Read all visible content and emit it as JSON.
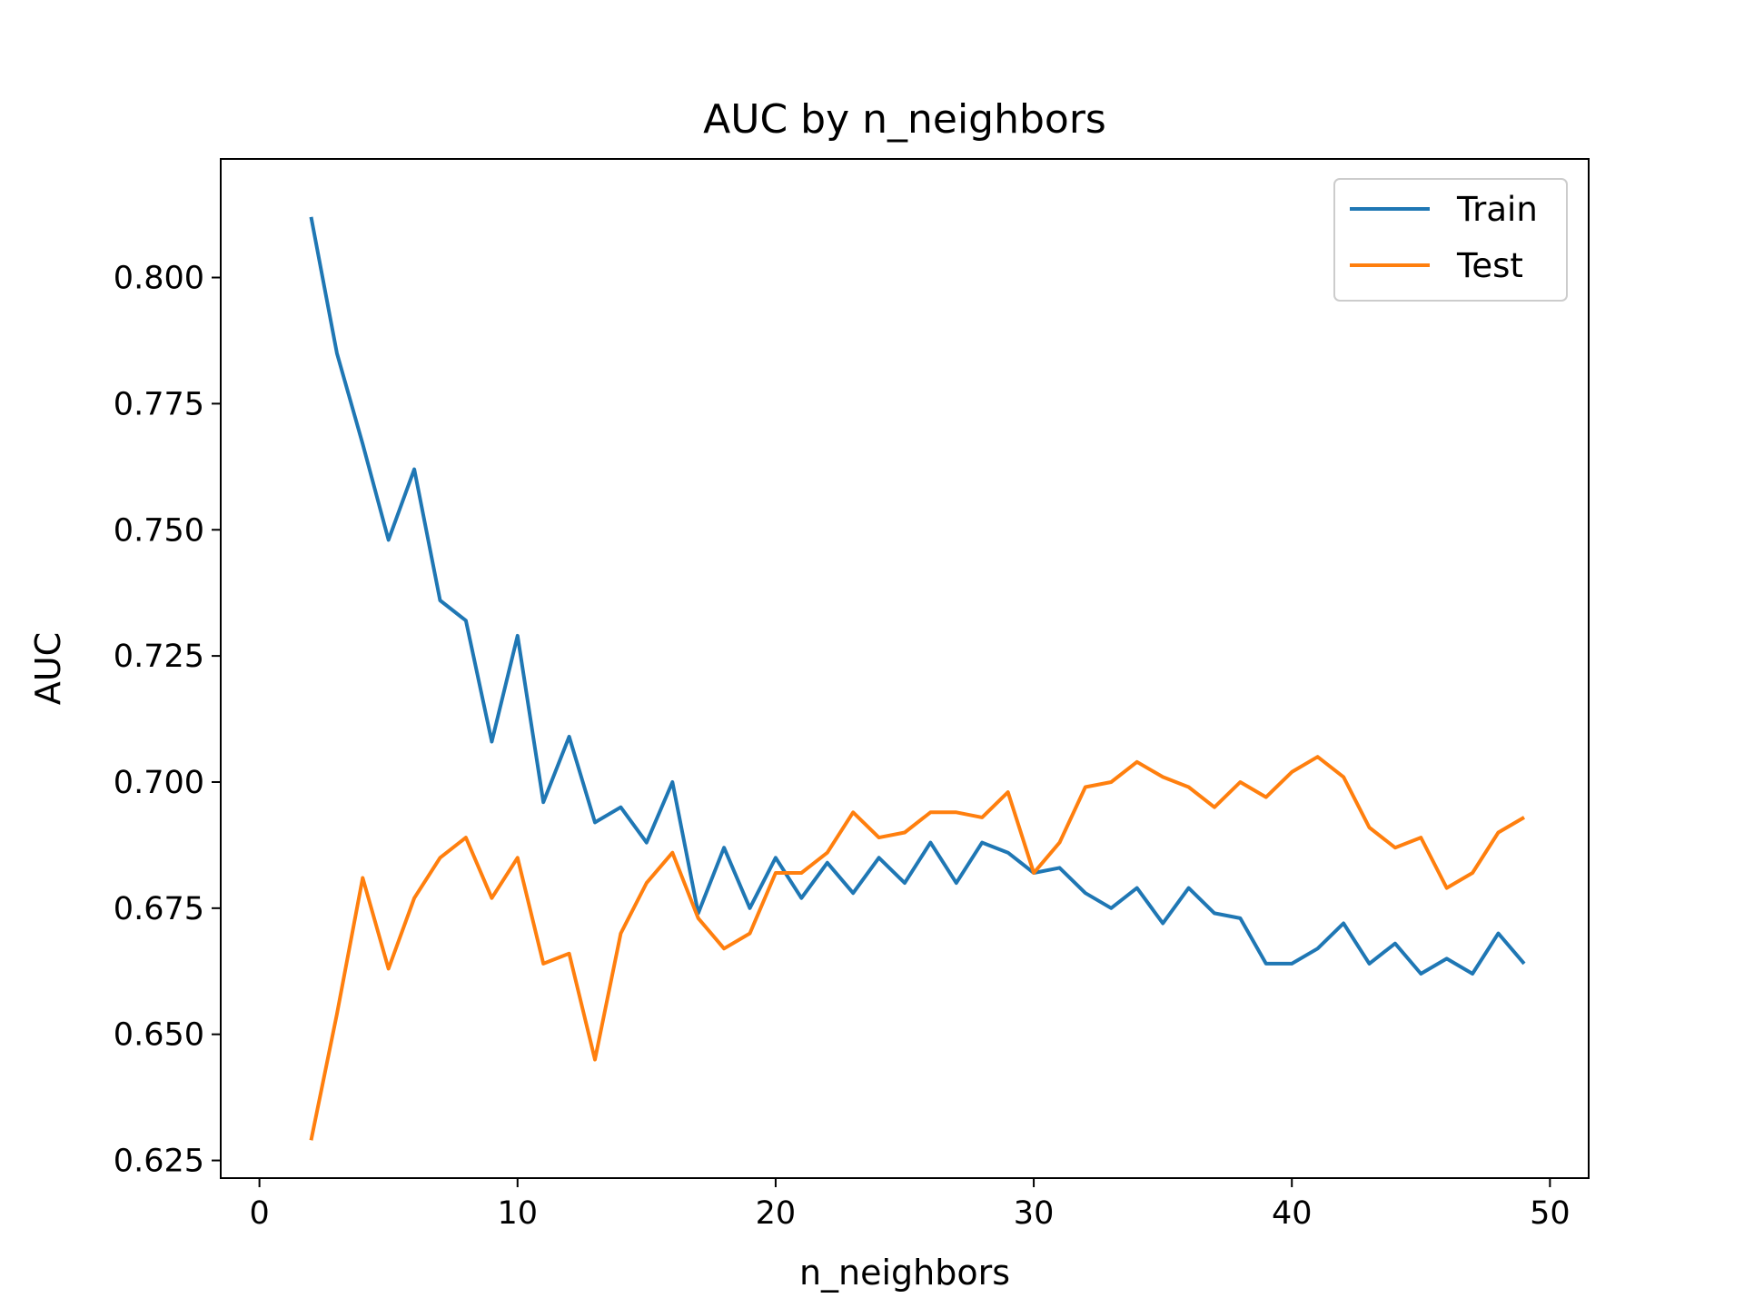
{
  "chart_data": {
    "type": "line",
    "title": "AUC by n_neighbors",
    "xlabel": "n_neighbors",
    "ylabel": "AUC",
    "xlim": [
      -1.5,
      51.5
    ],
    "ylim": [
      0.6215,
      0.8235
    ],
    "xticks": [
      0,
      10,
      20,
      30,
      40,
      50
    ],
    "yticks": [
      0.625,
      0.65,
      0.675,
      0.7,
      0.725,
      0.75,
      0.775,
      0.8
    ],
    "xtick_labels": [
      "0",
      "10",
      "20",
      "30",
      "40",
      "50"
    ],
    "ytick_labels": [
      "0.625",
      "0.650",
      "0.675",
      "0.700",
      "0.725",
      "0.750",
      "0.775",
      "0.800"
    ],
    "grid": false,
    "legend_position": "top-right",
    "x": [
      2,
      3,
      4,
      5,
      6,
      7,
      8,
      9,
      10,
      11,
      12,
      13,
      14,
      15,
      16,
      17,
      18,
      19,
      20,
      21,
      22,
      23,
      24,
      25,
      26,
      27,
      28,
      29,
      30,
      31,
      32,
      33,
      34,
      35,
      36,
      37,
      38,
      39,
      40,
      41,
      42,
      43,
      44,
      45,
      46,
      47,
      48,
      49
    ],
    "series": [
      {
        "name": "Train",
        "color": "#1f77b4",
        "values": [
          0.812,
          0.785,
          0.767,
          0.748,
          0.762,
          0.736,
          0.732,
          0.708,
          0.729,
          0.696,
          0.709,
          0.692,
          0.695,
          0.688,
          0.7,
          0.674,
          0.687,
          0.675,
          0.685,
          0.677,
          0.684,
          0.678,
          0.685,
          0.68,
          0.688,
          0.68,
          0.688,
          0.686,
          0.682,
          0.683,
          0.678,
          0.675,
          0.679,
          0.672,
          0.679,
          0.674,
          0.673,
          0.664,
          0.664,
          0.667,
          0.672,
          0.664,
          0.668,
          0.662,
          0.665,
          0.662,
          0.67,
          0.664
        ]
      },
      {
        "name": "Test",
        "color": "#ff7f0e",
        "values": [
          0.629,
          0.654,
          0.681,
          0.663,
          0.677,
          0.685,
          0.689,
          0.677,
          0.685,
          0.664,
          0.666,
          0.645,
          0.67,
          0.68,
          0.686,
          0.673,
          0.667,
          0.67,
          0.682,
          0.682,
          0.686,
          0.694,
          0.689,
          0.69,
          0.694,
          0.694,
          0.693,
          0.698,
          0.682,
          0.688,
          0.699,
          0.7,
          0.704,
          0.701,
          0.699,
          0.695,
          0.7,
          0.697,
          0.702,
          0.705,
          0.701,
          0.691,
          0.687,
          0.689,
          0.679,
          0.682,
          0.69,
          0.693
        ]
      }
    ]
  }
}
